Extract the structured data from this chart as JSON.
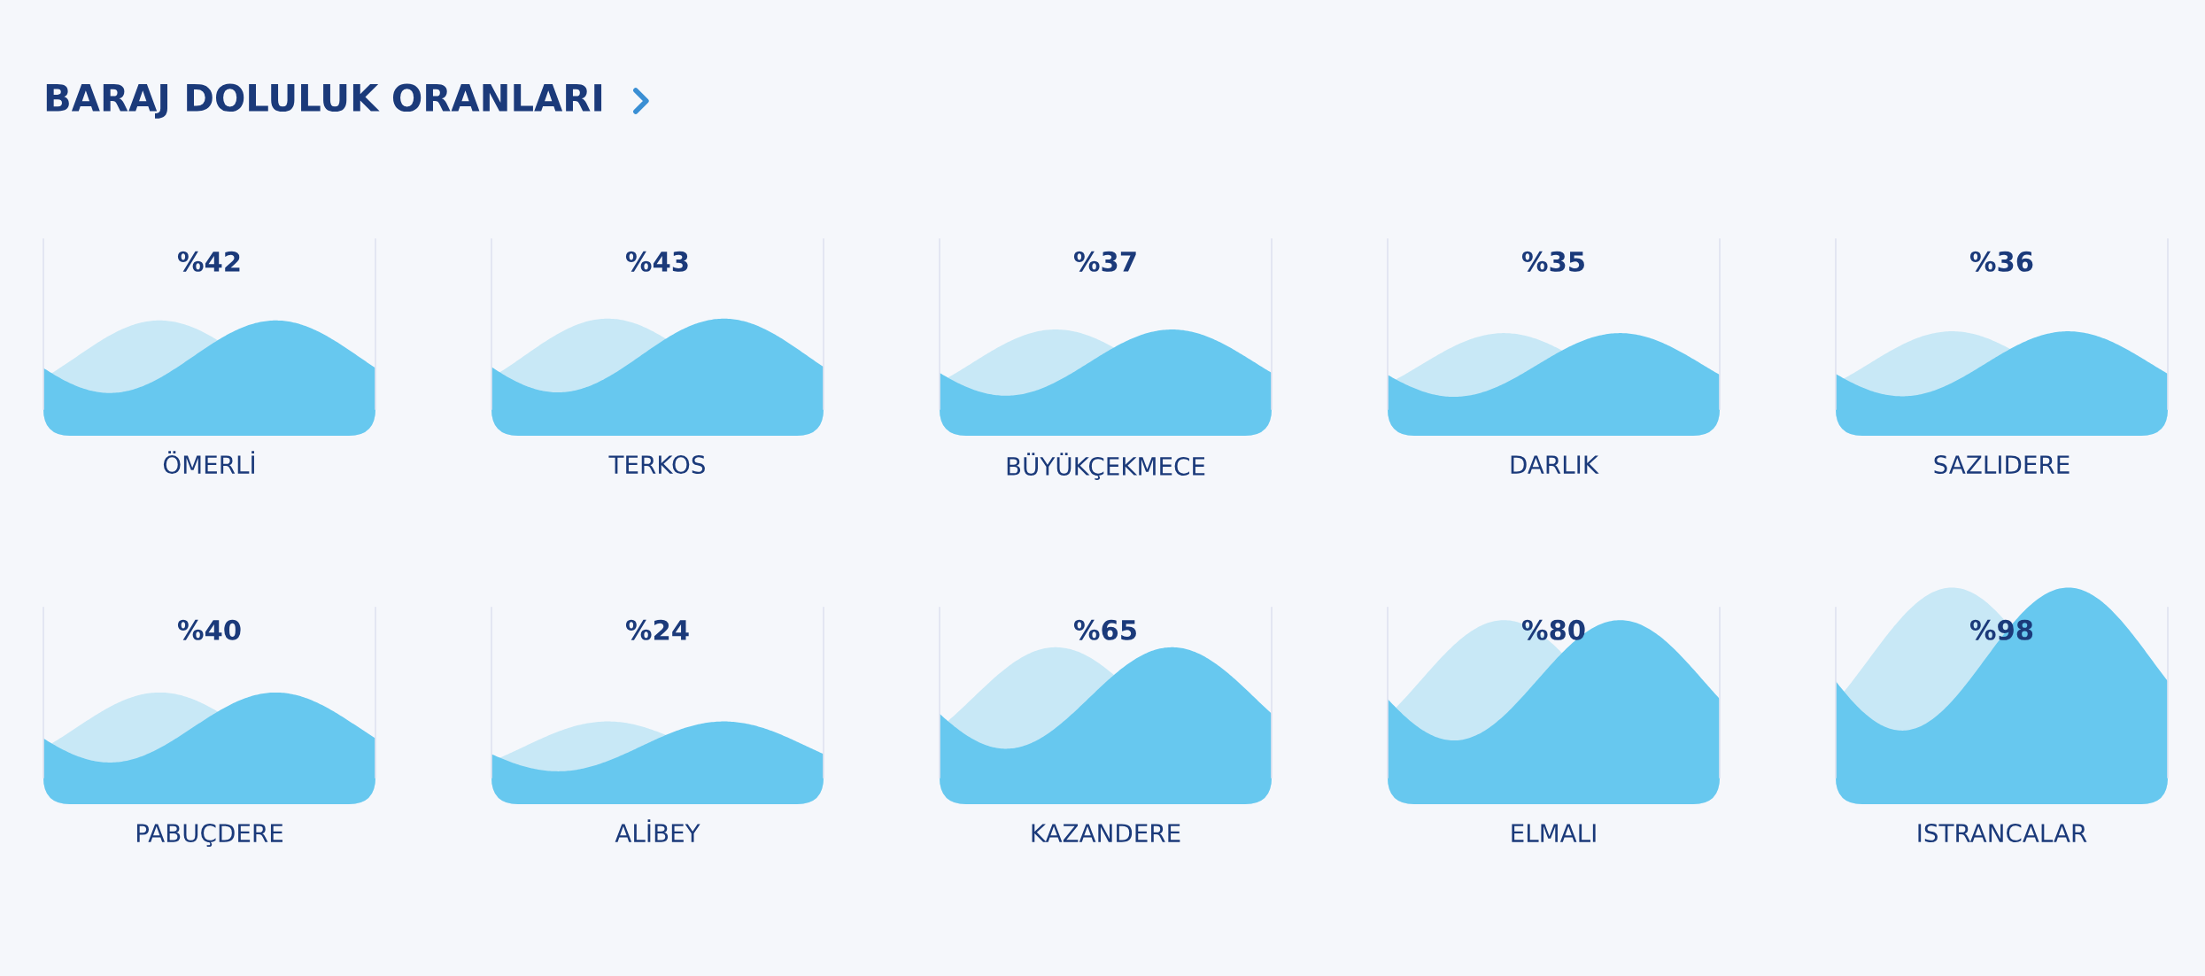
{
  "chart_data": [
    {
      "type": "other",
      "title": "BARAJ DOLULUK ORANLARI"
    },
    {
      "type": "other",
      "categories": [
        "ÖMERLİ"
      ],
      "values": [
        42
      ],
      "value_labels": [
        "%42"
      ]
    },
    {
      "type": "other",
      "categories": [
        "TERKOS"
      ],
      "values": [
        43
      ],
      "value_labels": [
        "%43"
      ]
    },
    {
      "type": "other",
      "categories": [
        "BÜYÜKÇEKMECE"
      ],
      "values": [
        37
      ],
      "value_labels": [
        "%37"
      ]
    },
    {
      "type": "other",
      "categories": [
        "DARLIK"
      ],
      "values": [
        35
      ],
      "value_labels": [
        "%35"
      ]
    },
    {
      "type": "other",
      "categories": [
        "SAZLIDERE"
      ],
      "values": [
        36
      ],
      "value_labels": [
        "%36"
      ]
    },
    {
      "type": "other",
      "categories": [
        "PABUÇDERE"
      ],
      "values": [
        40
      ],
      "value_labels": [
        "%40"
      ]
    },
    {
      "type": "other",
      "categories": [
        "ALİBEY"
      ],
      "values": [
        24
      ],
      "value_labels": [
        "%24"
      ]
    },
    {
      "type": "other",
      "categories": [
        "KAZANDERE"
      ],
      "values": [
        65
      ],
      "value_labels": [
        "%65"
      ]
    },
    {
      "type": "other",
      "categories": [
        "ELMALI"
      ],
      "values": [
        80
      ],
      "value_labels": [
        "%80"
      ]
    },
    {
      "type": "other",
      "categories": [
        "ISTRANCALAR"
      ],
      "values": [
        98
      ],
      "value_labels": [
        "%98"
      ]
    }
  ]
}
